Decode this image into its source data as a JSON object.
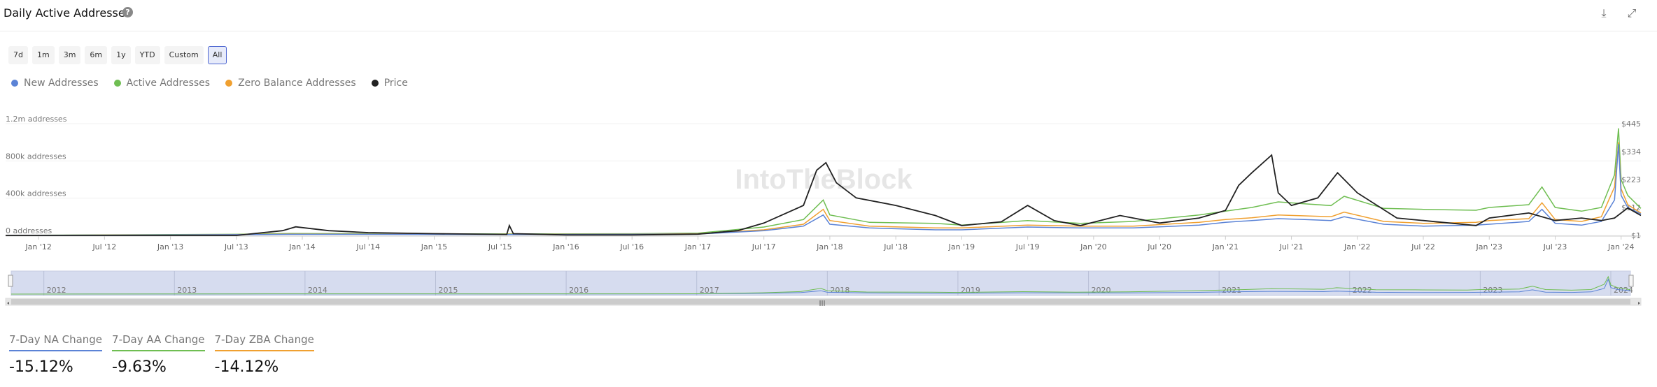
{
  "header": {
    "title": "Daily Active Addresses",
    "help": "?"
  },
  "tools": {
    "download": "⤓",
    "expand": "⤢"
  },
  "ranges": [
    "7d",
    "1m",
    "3m",
    "6m",
    "1y",
    "YTD",
    "Custom",
    "All"
  ],
  "active_range": "All",
  "watermark": "IntoTheBlock",
  "stats": [
    {
      "label": "7-Day NA Change",
      "value": "-15.12%",
      "color": "#5b83d6"
    },
    {
      "label": "7-Day AA Change",
      "value": "-9.63%",
      "color": "#6fbe52"
    },
    {
      "label": "7-Day ZBA Change",
      "value": "-14.12%",
      "color": "#f0a030"
    }
  ],
  "chart_data": {
    "type": "line",
    "title": "",
    "y_left": {
      "ticks": [
        "0 addresses",
        "400k addresses",
        "800k addresses",
        "1.2m addresses"
      ],
      "range": [
        0,
        1200000
      ]
    },
    "y_right": {
      "ticks": [
        "$1",
        "$112",
        "$223",
        "$334",
        "$445"
      ],
      "range": [
        1,
        445
      ]
    },
    "x_ticks": [
      "Jan '12",
      "Jul '12",
      "Jan '13",
      "Jul '13",
      "Jan '14",
      "Jul '14",
      "Jan '15",
      "Jul '15",
      "Jan '16",
      "Jul '16",
      "Jan '17",
      "Jul '17",
      "Jan '18",
      "Jul '18",
      "Jan '19",
      "Jul '19",
      "Jan '20",
      "Jul '20",
      "Jan '21",
      "Jul '21",
      "Jan '22",
      "Jul '22",
      "Jan '23",
      "Jul '23",
      "Jan '24"
    ],
    "navigator_years": [
      "2012",
      "2013",
      "2014",
      "2015",
      "2016",
      "2017",
      "2018",
      "2019",
      "2020",
      "2021",
      "2022",
      "2023",
      "2024"
    ],
    "x_range": [
      2011.75,
      2024.15
    ],
    "legend_position": "top-left",
    "series": [
      {
        "name": "New Addresses",
        "color": "#5b83d6",
        "axis": "left",
        "x": [
          2011.75,
          2012.5,
          2013.5,
          2013.9,
          2014.5,
          2015.5,
          2016.5,
          2017.0,
          2017.5,
          2017.8,
          2017.95,
          2018.0,
          2018.3,
          2018.8,
          2019.0,
          2019.5,
          2019.9,
          2020.3,
          2020.8,
          2021.0,
          2021.2,
          2021.4,
          2021.6,
          2021.8,
          2021.9,
          2022.2,
          2022.5,
          2022.9,
          2023.0,
          2023.3,
          2023.4,
          2023.5,
          2023.7,
          2023.85,
          2023.95,
          2023.98,
          2024.0,
          2024.05,
          2024.15
        ],
        "y": [
          0,
          3000,
          8000,
          12000,
          12000,
          10000,
          12000,
          15000,
          50000,
          100000,
          220000,
          120000,
          80000,
          60000,
          60000,
          90000,
          80000,
          80000,
          110000,
          140000,
          160000,
          180000,
          170000,
          160000,
          200000,
          120000,
          100000,
          110000,
          120000,
          150000,
          280000,
          130000,
          110000,
          150000,
          380000,
          980000,
          430000,
          300000,
          230000
        ]
      },
      {
        "name": "Active Addresses",
        "color": "#6fbe52",
        "axis": "left",
        "x": [
          2011.75,
          2012.5,
          2013.5,
          2013.9,
          2014.5,
          2015.5,
          2016.5,
          2017.0,
          2017.5,
          2017.8,
          2017.95,
          2018.0,
          2018.3,
          2018.8,
          2019.0,
          2019.5,
          2019.9,
          2020.3,
          2020.8,
          2021.0,
          2021.2,
          2021.4,
          2021.6,
          2021.8,
          2021.9,
          2022.2,
          2022.5,
          2022.9,
          2023.0,
          2023.3,
          2023.4,
          2023.5,
          2023.7,
          2023.85,
          2023.95,
          2023.98,
          2024.0,
          2024.05,
          2024.15
        ],
        "y": [
          0,
          5000,
          12000,
          20000,
          18000,
          16000,
          18000,
          25000,
          90000,
          170000,
          380000,
          220000,
          140000,
          130000,
          110000,
          160000,
          130000,
          150000,
          220000,
          260000,
          300000,
          360000,
          340000,
          320000,
          420000,
          290000,
          280000,
          270000,
          300000,
          330000,
          520000,
          300000,
          260000,
          300000,
          650000,
          1150000,
          600000,
          430000,
          290000
        ]
      },
      {
        "name": "Zero Balance Addresses",
        "color": "#f0a030",
        "axis": "left",
        "x": [
          2011.75,
          2012.5,
          2013.5,
          2013.9,
          2014.5,
          2015.5,
          2016.5,
          2017.0,
          2017.5,
          2017.8,
          2017.95,
          2018.0,
          2018.3,
          2018.8,
          2019.0,
          2019.5,
          2019.9,
          2020.3,
          2020.8,
          2021.0,
          2021.2,
          2021.4,
          2021.6,
          2021.8,
          2021.9,
          2022.2,
          2022.5,
          2022.9,
          2023.0,
          2023.3,
          2023.4,
          2023.5,
          2023.7,
          2023.85,
          2023.95,
          2023.98,
          2024.0,
          2024.05,
          2024.15
        ],
        "y": [
          0,
          4000,
          9000,
          15000,
          14000,
          12000,
          14000,
          18000,
          60000,
          120000,
          280000,
          160000,
          100000,
          80000,
          80000,
          110000,
          100000,
          100000,
          140000,
          170000,
          190000,
          220000,
          210000,
          200000,
          250000,
          150000,
          130000,
          140000,
          160000,
          180000,
          350000,
          170000,
          150000,
          200000,
          520000,
          1000000,
          500000,
          330000,
          240000
        ]
      },
      {
        "name": "Price",
        "color": "#222222",
        "axis": "right",
        "x": [
          2011.75,
          2012.5,
          2013.5,
          2013.85,
          2013.95,
          2014.2,
          2014.5,
          2015.0,
          2015.55,
          2015.57,
          2015.6,
          2016.0,
          2016.5,
          2017.0,
          2017.3,
          2017.5,
          2017.8,
          2017.9,
          2017.97,
          2018.05,
          2018.2,
          2018.5,
          2018.8,
          2019.0,
          2019.3,
          2019.5,
          2019.7,
          2019.9,
          2020.2,
          2020.5,
          2020.8,
          2021.0,
          2021.1,
          2021.2,
          2021.35,
          2021.4,
          2021.5,
          2021.7,
          2021.85,
          2022.0,
          2022.3,
          2022.5,
          2022.9,
          2023.0,
          2023.3,
          2023.5,
          2023.7,
          2023.85,
          2023.95,
          2024.05,
          2024.15
        ],
        "y": [
          1,
          1,
          1,
          20,
          35,
          20,
          12,
          8,
          5,
          40,
          8,
          3,
          3,
          6,
          20,
          50,
          120,
          260,
          290,
          210,
          150,
          120,
          80,
          40,
          55,
          120,
          60,
          40,
          80,
          50,
          70,
          100,
          200,
          250,
          320,
          170,
          120,
          150,
          250,
          170,
          70,
          60,
          40,
          70,
          90,
          60,
          70,
          60,
          70,
          110,
          80
        ]
      }
    ]
  }
}
